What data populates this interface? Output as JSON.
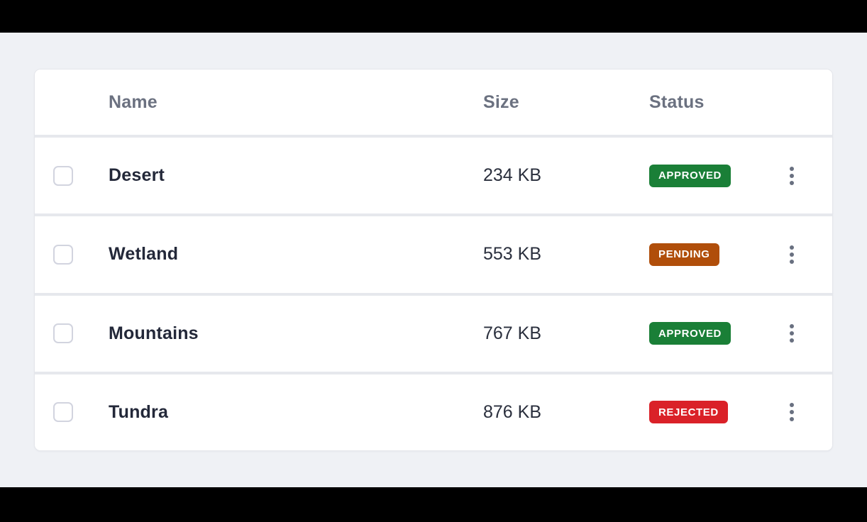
{
  "colors": {
    "letterbox": "#000000",
    "page_background": "#eff1f5",
    "card_background": "#ffffff",
    "card_border": "#e4e6eb",
    "divider": "#e6e8ed",
    "header_text": "#6b7180",
    "name_text": "#232839",
    "size_text": "#2a2f3d",
    "badge_text": "#ffffff",
    "checkbox_border": "#d2d4df",
    "kebab_dot": "#697080",
    "status_approved": "#1a7f37",
    "status_pending": "#b04e0a",
    "status_rejected": "#da2128"
  },
  "table": {
    "columns": [
      {
        "id": "name",
        "label": "Name"
      },
      {
        "id": "size",
        "label": "Size"
      },
      {
        "id": "status",
        "label": "Status"
      }
    ],
    "rows": [
      {
        "name": "Desert",
        "size": "234 KB",
        "status": "APPROVED",
        "status_color": "#1a7f37",
        "checked": false
      },
      {
        "name": "Wetland",
        "size": "553 KB",
        "status": "PENDING",
        "status_color": "#b04e0a",
        "checked": false
      },
      {
        "name": "Mountains",
        "size": "767 KB",
        "status": "APPROVED",
        "status_color": "#1a7f37",
        "checked": false
      },
      {
        "name": "Tundra",
        "size": "876 KB",
        "status": "REJECTED",
        "status_color": "#da2128",
        "checked": false
      }
    ],
    "row_menu_icon": "kebab-menu-icon"
  }
}
